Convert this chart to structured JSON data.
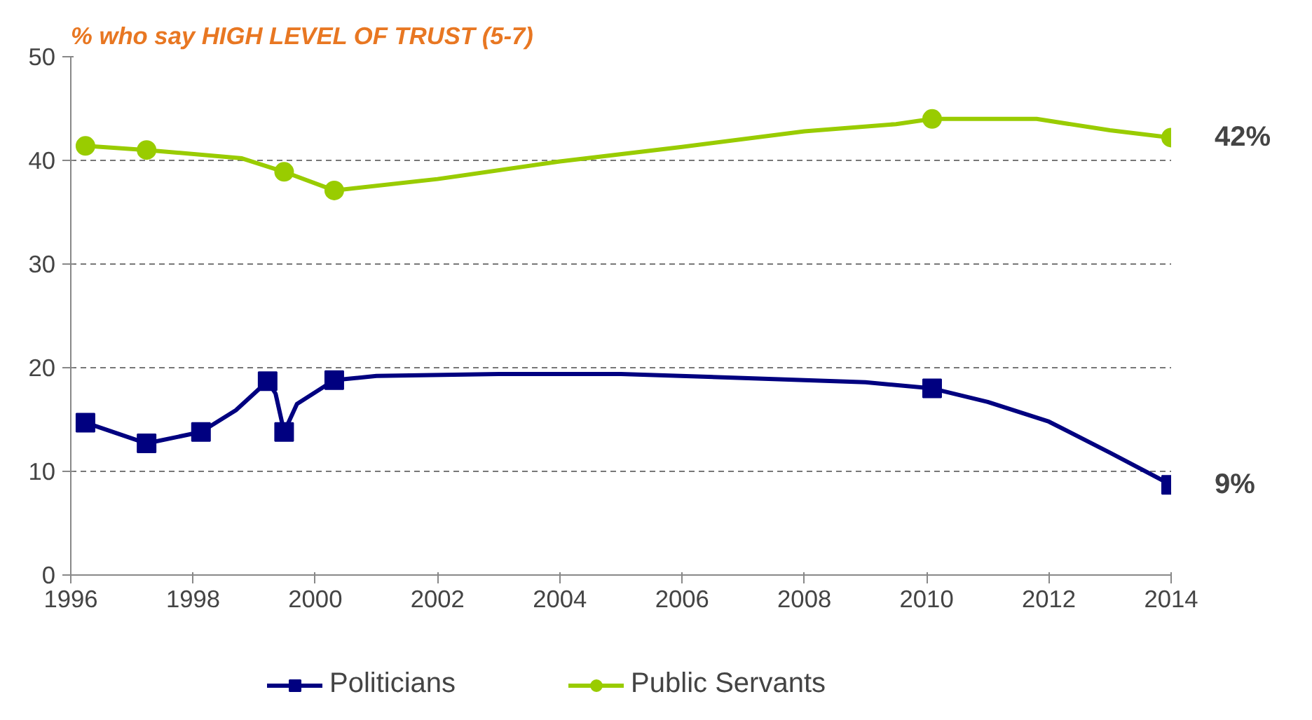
{
  "chart_data": {
    "type": "line",
    "title": "% who say HIGH LEVEL OF TRUST (5-7)",
    "xlim": [
      1996,
      2014
    ],
    "xticks": [
      1996,
      1998,
      2000,
      2002,
      2004,
      2006,
      2008,
      2010,
      2012,
      2014
    ],
    "ylim": [
      0,
      50
    ],
    "yticks": [
      0,
      10,
      20,
      30,
      40,
      50
    ],
    "grid": "y",
    "legend": "bottom",
    "line_style": "solid",
    "series": [
      {
        "color": "#000080",
        "x": [
          1996.24,
          1997.24,
          1998.13,
          1998.7,
          1999.22,
          1999.35,
          1999.49,
          1999.7,
          2000.31,
          2001,
          2003,
          2005,
          2007,
          2009,
          2010.09,
          2011,
          2012,
          2013,
          2014
        ],
        "values": [
          14.7,
          12.7,
          13.8,
          15.9,
          18.7,
          17.5,
          13.8,
          16.5,
          18.8,
          19.2,
          19.4,
          19.4,
          19.0,
          18.6,
          18.0,
          16.7,
          14.8,
          11.8,
          8.7
        ]
      },
      {
        "color": "#99CC00",
        "x": [
          1996.24,
          1997.24,
          1998.8,
          1999.49,
          2000.31,
          2002,
          2004,
          2006,
          2008,
          2009.5,
          2010.09,
          2011.8,
          2013,
          2014
        ],
        "values": [
          41.4,
          41.0,
          40.2,
          38.9,
          37.1,
          38.2,
          39.9,
          41.3,
          42.8,
          43.5,
          44.0,
          44.0,
          42.9,
          42.2
        ]
      },
      {
        "type": "scatter",
        "name": "Politicians",
        "color": "#000080",
        "marker": "square",
        "x": [
          1996.24,
          1997.24,
          1998.13,
          1999.22,
          1999.49,
          2000.31,
          2010.09,
          2014
        ],
        "values": [
          14.7,
          12.7,
          13.8,
          18.7,
          13.8,
          18.8,
          18.0,
          8.7
        ],
        "value_labels": [
          null,
          null,
          null,
          null,
          null,
          null,
          null,
          "9%"
        ]
      },
      {
        "type": "scatter",
        "name": "Public Servants",
        "color": "#99CC00",
        "marker": "circle",
        "x": [
          1996.24,
          1997.24,
          1999.49,
          2000.31,
          2010.09,
          2014
        ],
        "values": [
          41.4,
          41.0,
          38.9,
          37.1,
          44.0,
          42.2
        ],
        "value_labels": [
          null,
          null,
          null,
          null,
          null,
          "42%"
        ]
      }
    ]
  }
}
